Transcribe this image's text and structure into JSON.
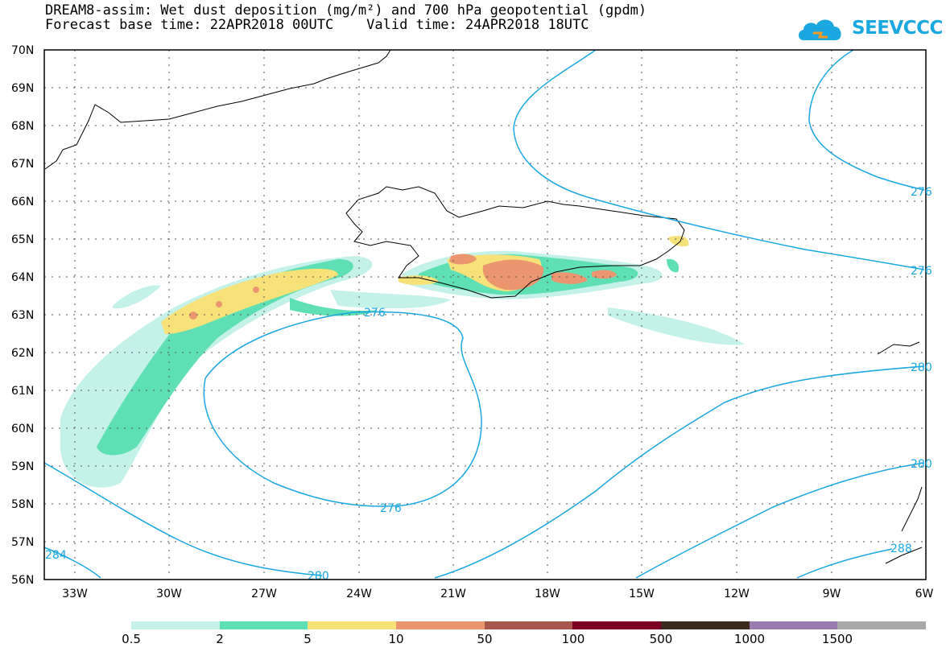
{
  "title": {
    "line1": "DREAM8-assim: Wet dust deposition (mg/m²) and 700 hPa geopotential (gpdm)",
    "line2": "Forecast base time: 22APR2018 00UTC    Valid time: 24APR2018 18UTC"
  },
  "logo": {
    "text": "SEEVCCC",
    "icon": "cloud-logo-icon",
    "color": "#1ba7e0"
  },
  "map": {
    "lat_labels": [
      "70N",
      "69N",
      "68N",
      "67N",
      "66N",
      "65N",
      "64N",
      "63N",
      "62N",
      "61N",
      "60N",
      "59N",
      "58N",
      "57N",
      "56N"
    ],
    "lon_labels": [
      "33W",
      "30W",
      "27W",
      "24W",
      "21W",
      "18W",
      "15W",
      "12W",
      "9W",
      "6W"
    ],
    "contour_labels": [
      "276",
      "276",
      "280",
      "284",
      "288",
      "276",
      "276",
      "280",
      "280"
    ],
    "contour_color": "#1ba7e0"
  },
  "legend": {
    "colors": [
      "#c4f1e8",
      "#5ee0b4",
      "#f7e27a",
      "#ec9670",
      "#a9574c",
      "#7d0024",
      "#3b2a1d",
      "#9a7bb0",
      "#a9a9a9"
    ],
    "labels": [
      "0.5",
      "2",
      "5",
      "10",
      "50",
      "100",
      "500",
      "1000",
      "1500"
    ]
  }
}
